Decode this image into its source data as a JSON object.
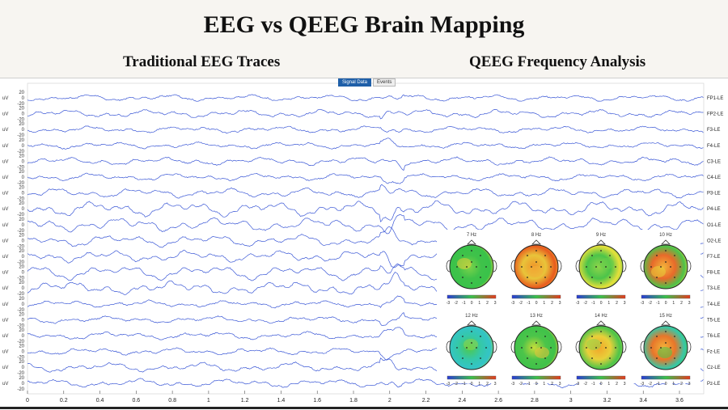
{
  "header": {
    "title": "EEG vs QEEG Brain Mapping",
    "left_subtitle": "Traditional EEG Traces",
    "right_subtitle": "QEEG Frequency Analysis"
  },
  "tabs": [
    {
      "label": "Signal Data",
      "active": true
    },
    {
      "label": "Events",
      "active": false
    }
  ],
  "eeg": {
    "unit": "uV",
    "scale_ticks": [
      "20",
      "0",
      "-20"
    ],
    "channels": [
      "FP1-LE",
      "FP2-LE",
      "F3-LE",
      "F4-LE",
      "C3-LE",
      "C4-LE",
      "P3-LE",
      "P4-LE",
      "O1-LE",
      "O2-LE",
      "F7-LE",
      "F8-LE",
      "T3-LE",
      "T4-LE",
      "T5-LE",
      "T6-LE",
      "Fz-LE",
      "Cz-LE",
      "Pz-LE"
    ],
    "x_ticks": [
      "0",
      "0.2",
      "0.4",
      "0.6",
      "0.8",
      "1",
      "1.2",
      "1.4",
      "1.6",
      "1.8",
      "2",
      "2.2",
      "2.4",
      "2.6",
      "2.8",
      "3",
      "3.2",
      "3.4",
      "3.6"
    ],
    "trace_color": "#3a57d6"
  },
  "qeeg": {
    "maps": [
      {
        "label": "7 Hz"
      },
      {
        "label": "8 Hz"
      },
      {
        "label": "9 Hz"
      },
      {
        "label": "10 Hz"
      },
      {
        "label": "12 Hz"
      },
      {
        "label": "13 Hz"
      },
      {
        "label": "14 Hz"
      },
      {
        "label": "15 Hz"
      }
    ],
    "colorbar_ticks": [
      "-3",
      "-2",
      "-1",
      "0",
      "1",
      "2",
      "3"
    ],
    "colors": {
      "low": "#2a3bd8",
      "mid": "#39c24a",
      "high": "#e83a1e"
    }
  }
}
